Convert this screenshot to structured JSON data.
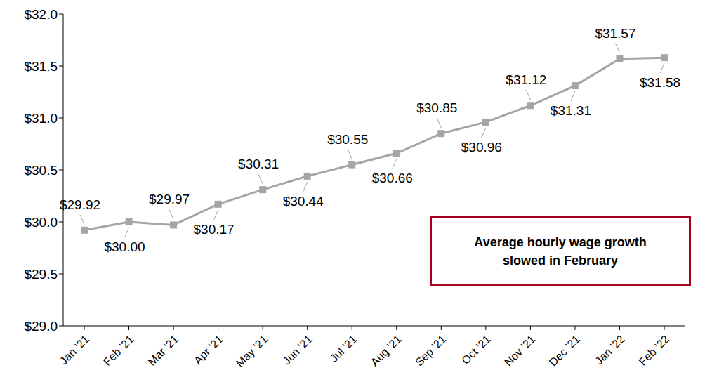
{
  "chart_data": {
    "type": "line",
    "categories": [
      "Jan ’21",
      "Feb ’21",
      "Mar ’21",
      "Apr ’21",
      "May ’21",
      "Jun ’21",
      "Jul ’21",
      "Aug ’21",
      "Sep ’21",
      "Oct ’21",
      "Nov ’21",
      "Dec ’21",
      "Jan ’22",
      "Feb ’22"
    ],
    "values": [
      29.92,
      30.0,
      29.97,
      30.17,
      30.31,
      30.44,
      30.55,
      30.66,
      30.85,
      30.96,
      31.12,
      31.31,
      31.57,
      31.58
    ],
    "value_labels": [
      "$29.92",
      "$30.00",
      "$29.97",
      "$30.17",
      "$30.31",
      "$30.44",
      "$30.55",
      "$30.66",
      "$30.85",
      "$30.96",
      "$31.12",
      "$31.31",
      "$31.57",
      "$31.58"
    ],
    "color": "#A5A5A5",
    "marker": "square",
    "data_labels": true,
    "ylim": [
      29,
      32
    ],
    "yticks": [
      {
        "value": 29,
        "label": "$29.0"
      },
      {
        "value": 29.5,
        "label": "$29.5"
      },
      {
        "value": 30,
        "label": "$30.0"
      },
      {
        "value": 30.5,
        "label": "$30.5"
      },
      {
        "value": 31,
        "label": "$31.0"
      },
      {
        "value": 31.5,
        "label": "$31.5"
      },
      {
        "value": 32,
        "label": "$32.0"
      }
    ],
    "grid": false,
    "annotation": "Average hourly wage growth slowed in February"
  }
}
